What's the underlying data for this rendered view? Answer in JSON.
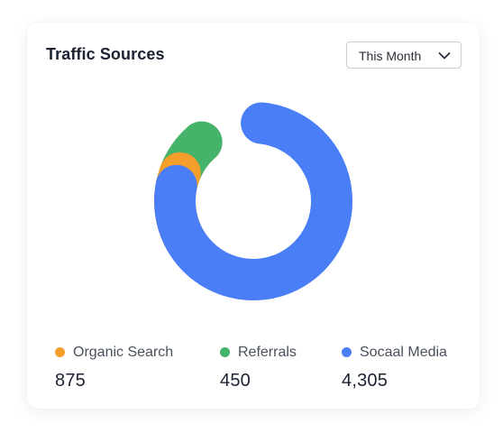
{
  "card": {
    "title": "Traffic Sources",
    "period_select": {
      "selected": "This Month"
    }
  },
  "chart_data": {
    "type": "pie",
    "donut": true,
    "title": "Traffic Sources",
    "segments": [
      {
        "name": "Organic Search",
        "value": 875,
        "display": "875",
        "color": "#F59E2B"
      },
      {
        "name": "Referrals",
        "value": 450,
        "display": "450",
        "color": "#46B36A"
      },
      {
        "name": "Socaal Media",
        "value": 4305,
        "display": "4,305",
        "color": "#4A7EF7"
      }
    ],
    "legend_position": "bottom"
  },
  "icons": {
    "dropdown": "chevron-down-icon"
  }
}
